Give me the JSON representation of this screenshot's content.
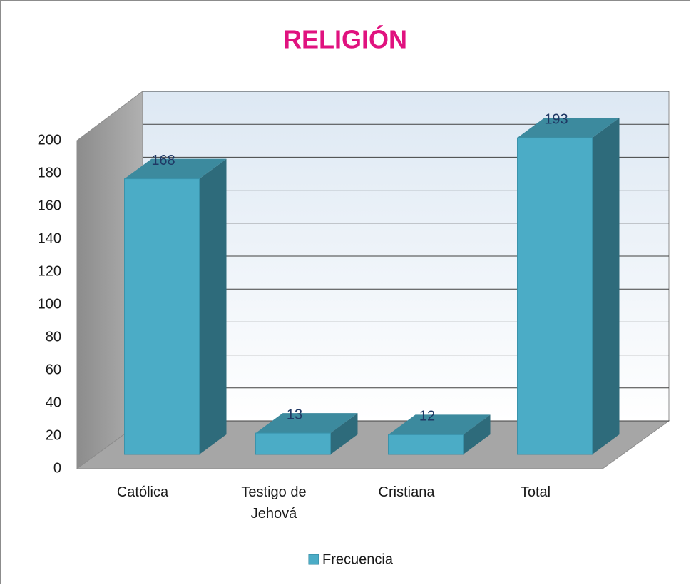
{
  "chart_data": {
    "type": "bar3d",
    "title": "RELIGIÓN",
    "categories": [
      "Católica",
      "Testigo de Jehová",
      "Cristiana",
      "Total"
    ],
    "series": [
      {
        "name": "Frecuencia",
        "color": "#4bacc6",
        "values": [
          168,
          13,
          12,
          193
        ]
      }
    ],
    "ylim": [
      0,
      200
    ],
    "yticks": [
      0,
      20,
      40,
      60,
      80,
      100,
      120,
      140,
      160,
      180,
      200
    ],
    "grid": true,
    "legend": "bottom"
  }
}
